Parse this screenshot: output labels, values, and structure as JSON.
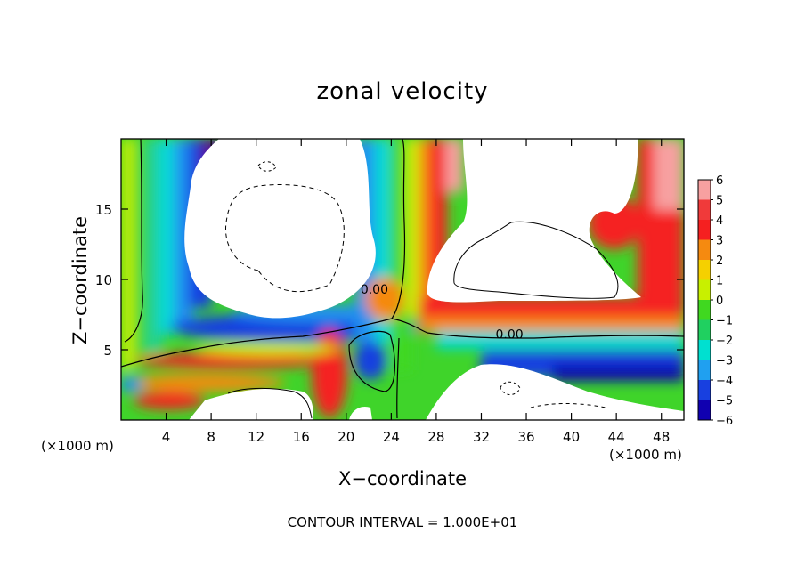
{
  "chart_data": {
    "type": "heatmap",
    "title": "zonal velocity",
    "xlabel": "X−coordinate",
    "ylabel": "Z−coordinate",
    "x_unit_left": "(×1000 m)",
    "x_unit_right": "(×1000 m)",
    "xlim": [
      0,
      50
    ],
    "ylim": [
      0,
      20
    ],
    "x_ticks": [
      4,
      8,
      12,
      16,
      20,
      24,
      28,
      32,
      36,
      40,
      44,
      48
    ],
    "y_ticks": [
      5,
      10,
      15
    ],
    "contour_labels": [
      {
        "text": "0.00",
        "x": 22.5,
        "y": 9.0
      },
      {
        "text": "0.00",
        "x": 34.5,
        "y": 5.8
      }
    ],
    "colorbar": {
      "levels": [
        6,
        5,
        4,
        3,
        2,
        1,
        0,
        -1,
        -2,
        -3,
        -4,
        -5,
        -6
      ],
      "labels": [
        "6",
        "5",
        "4",
        "3",
        "2",
        "1",
        "0",
        "−1",
        "−2",
        "−3",
        "−4",
        "−5",
        "−6"
      ],
      "colors": [
        "#f7a0a0",
        "#f03a3a",
        "#f52020",
        "#f58a10",
        "#f5d000",
        "#c8f000",
        "#40d820",
        "#20d060",
        "#00e0d0",
        "#20a0f0",
        "#1840e0",
        "#1000b0",
        "#5a0090"
      ]
    },
    "footer": "CONTOUR INTERVAL = 1.000E+01"
  }
}
